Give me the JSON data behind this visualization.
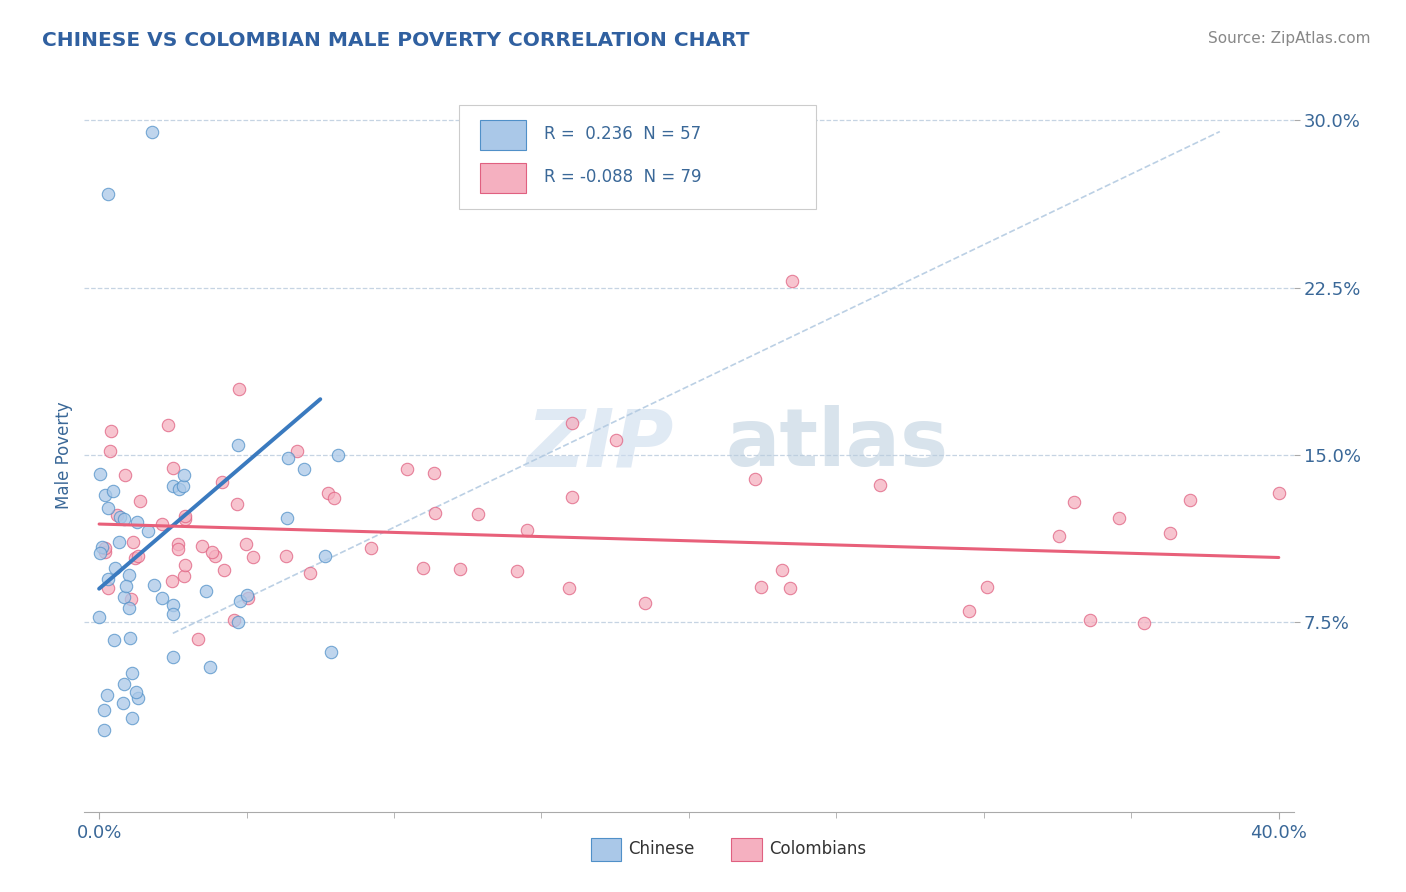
{
  "title": "CHINESE VS COLOMBIAN MALE POVERTY CORRELATION CHART",
  "source_text": "Source: ZipAtlas.com",
  "ylabel": "Male Poverty",
  "xlim": [
    -0.005,
    0.405
  ],
  "ylim": [
    -0.01,
    0.31
  ],
  "ytick_values": [
    0.075,
    0.15,
    0.225,
    0.3
  ],
  "ytick_labels": [
    "7.5%",
    "15.0%",
    "22.5%",
    "30.0%"
  ],
  "xtick_values": [
    0.0,
    0.4
  ],
  "xtick_labels": [
    "0.0%",
    "40.0%"
  ],
  "legend_r_chinese": " 0.236",
  "legend_n_chinese": "57",
  "legend_r_colombian": "-0.088",
  "legend_n_colombian": "79",
  "chinese_face_color": "#aac8e8",
  "chinese_edge_color": "#5090c8",
  "colombian_face_color": "#f5b0c0",
  "colombian_edge_color": "#e06080",
  "chinese_line_color": "#3a7abf",
  "colombian_line_color": "#e8607a",
  "dash_line_color": "#b0c8e0",
  "watermark_zip": "ZIP",
  "watermark_atlas": "atlas",
  "background_color": "#ffffff",
  "grid_color": "#c0d0e0",
  "title_color": "#3060a0",
  "axis_label_color": "#3a6898",
  "tick_label_color": "#3a6898",
  "legend_text_color": "#3a6898",
  "source_color": "#888888"
}
